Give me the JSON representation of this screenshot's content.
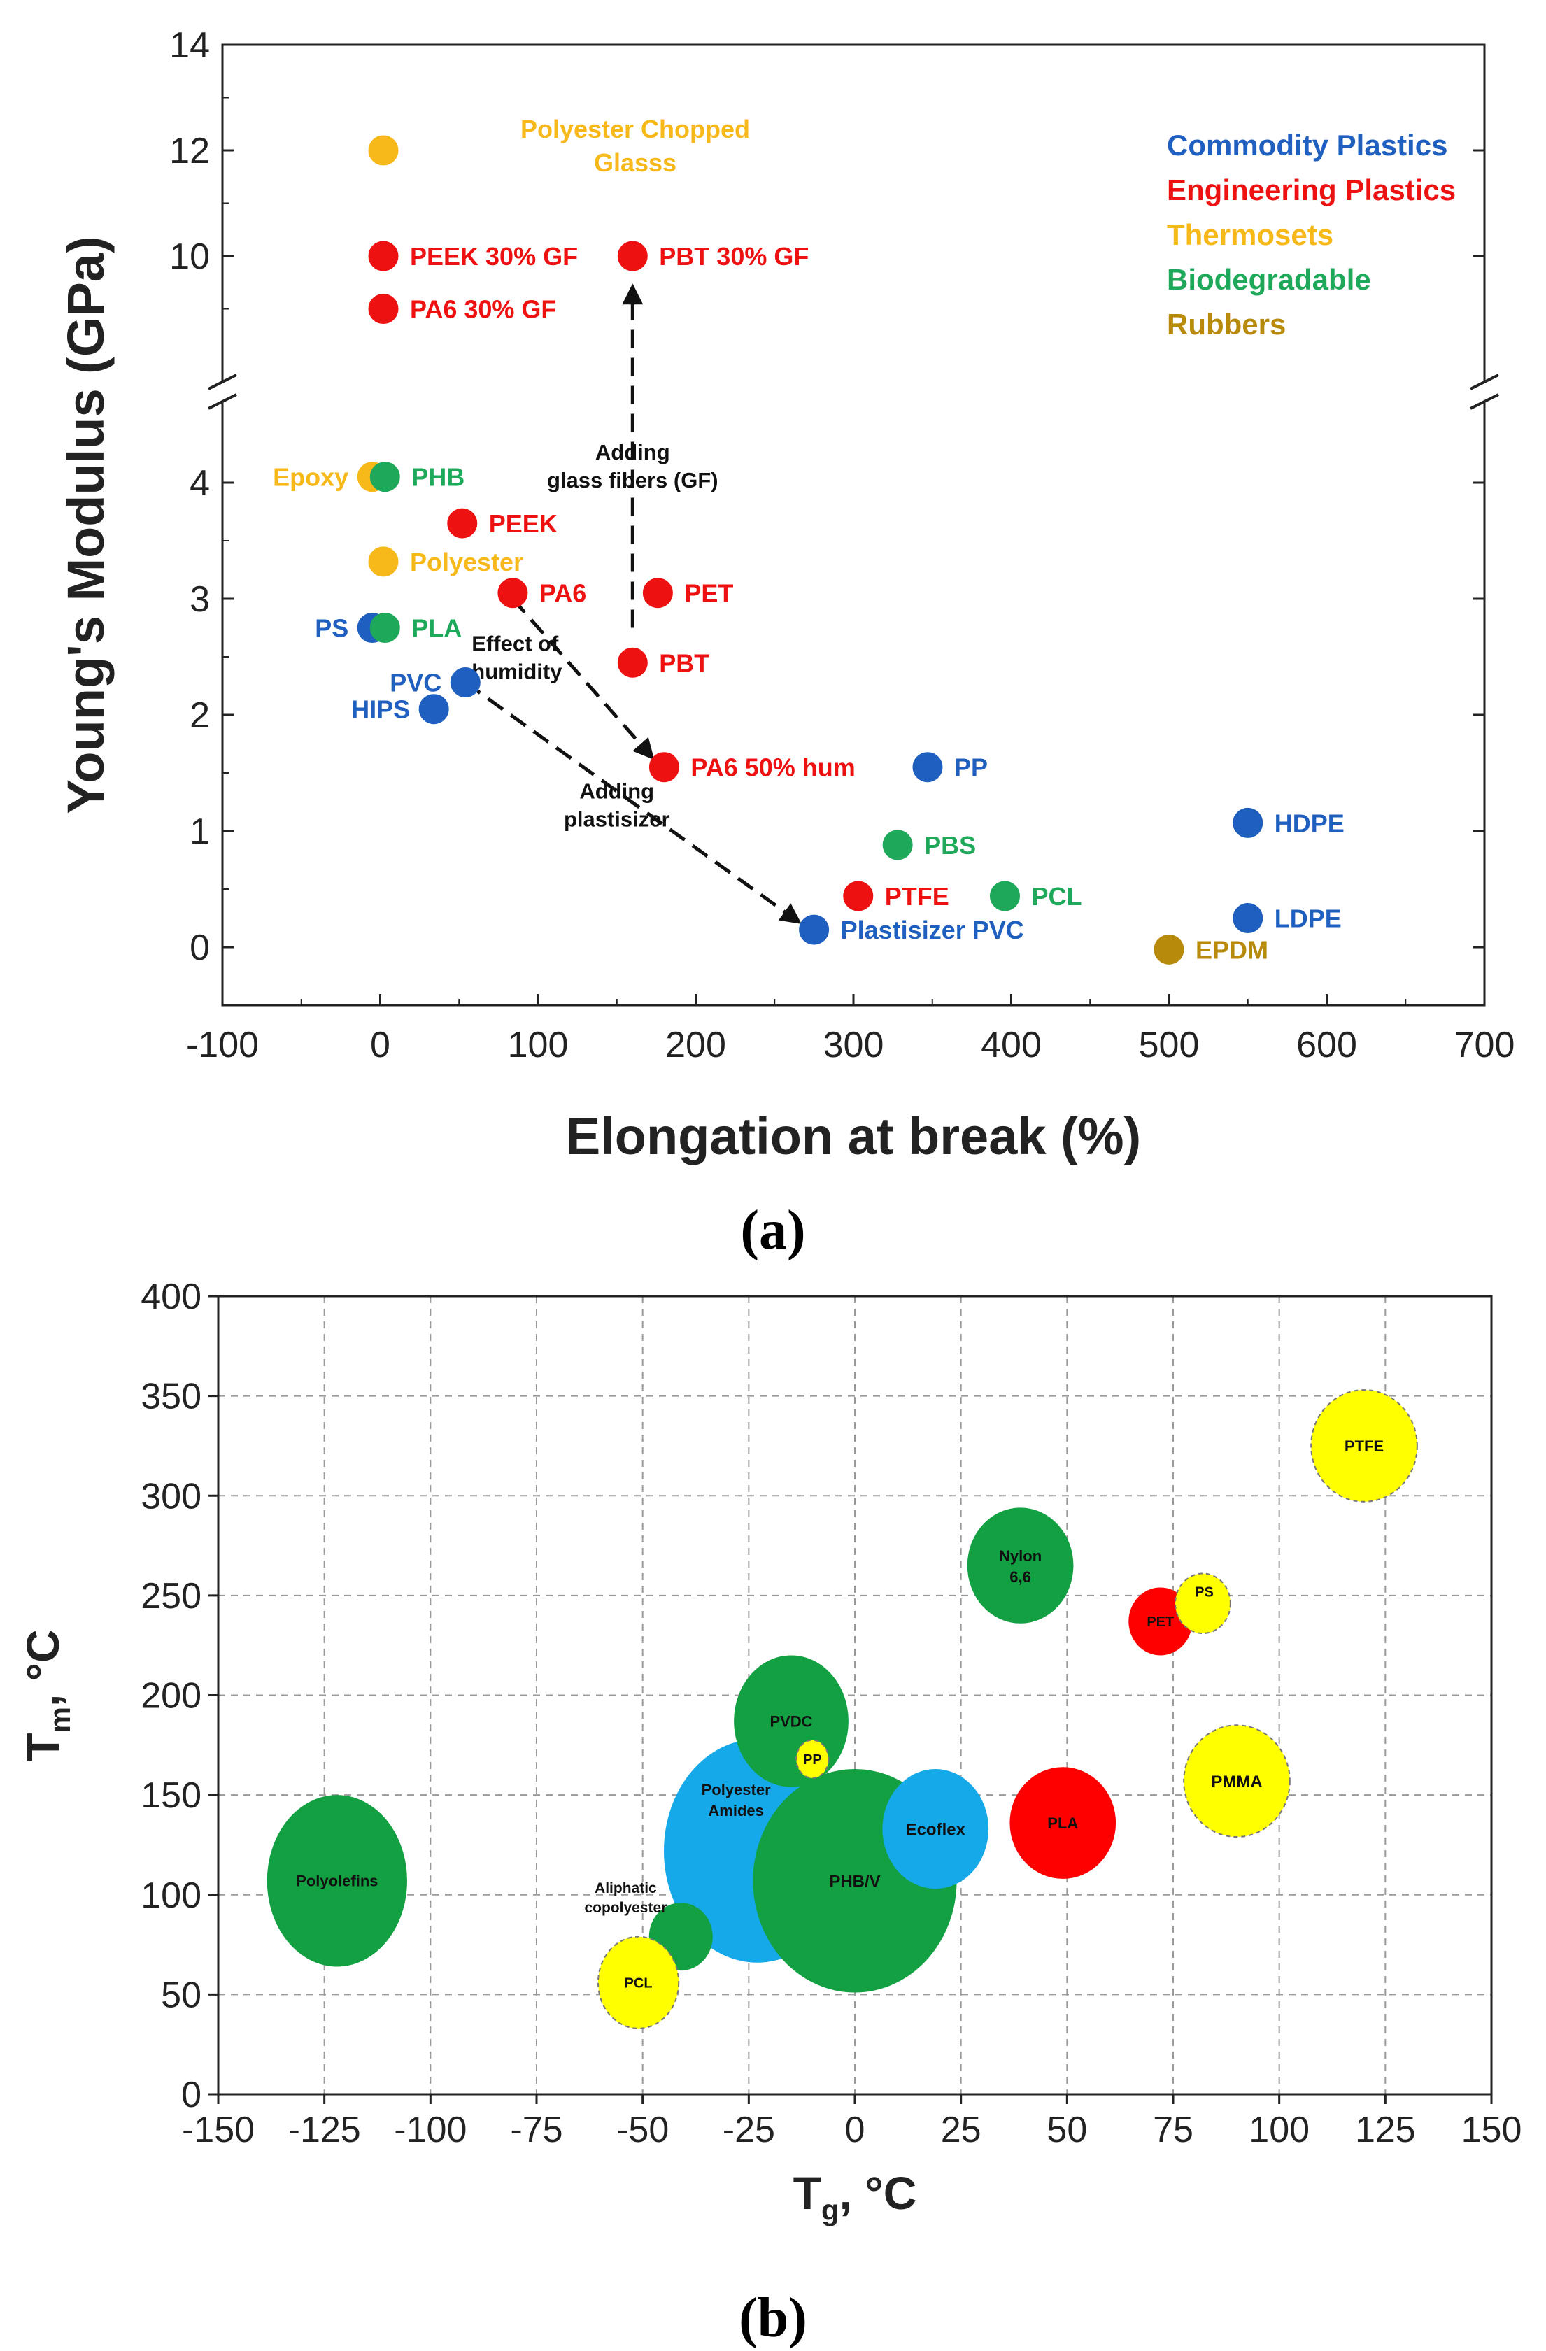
{
  "colors": {
    "commodity": "#1f5fbf",
    "engineering": "#ee1111",
    "thermoset": "#f7b919",
    "biodegradable": "#1ea85a",
    "rubber": "#b78a0c",
    "bubble_green": "#12a043",
    "bubble_blue": "#16a9e9",
    "bubble_yellow": "#ffff00",
    "bubble_red": "#ff0000"
  },
  "panel_labels": {
    "a": "(a)",
    "b": "(b)"
  },
  "chart_data": [
    {
      "id": "a",
      "type": "scatter",
      "xlabel": "Elongation at break (%)",
      "ylabel": "Young's Modulus (GPa)",
      "xlim": [
        -100,
        700
      ],
      "xticks": [
        "-100",
        "0",
        "100",
        "200",
        "300",
        "400",
        "500",
        "600",
        "700"
      ],
      "y_broken_axis": true,
      "ylim_lower": [
        -0.5,
        4.5
      ],
      "ylim_upper": [
        8,
        14
      ],
      "yticks": [
        "0",
        "1",
        "2",
        "3",
        "4",
        "10",
        "12",
        "14"
      ],
      "legend_position": "top-right",
      "legend": [
        {
          "name": "Commodity Plastics",
          "category": "commodity"
        },
        {
          "name": "Engineering Plastics",
          "category": "engineering"
        },
        {
          "name": "Thermosets",
          "category": "thermoset"
        },
        {
          "name": "Biodegradable",
          "category": "biodegradable"
        },
        {
          "name": "Rubbers",
          "category": "rubber"
        }
      ],
      "points": [
        {
          "label": "Polyester Chopped Glasss",
          "x": 2,
          "y": 12.0,
          "category": "thermoset",
          "label_side": "right"
        },
        {
          "label": "PEEK 30% GF",
          "x": 2,
          "y": 10.0,
          "category": "engineering",
          "label_side": "right"
        },
        {
          "label": "PBT 30% GF",
          "x": 160,
          "y": 10.0,
          "category": "engineering",
          "label_side": "right"
        },
        {
          "label": "PA6 30% GF",
          "x": 2,
          "y": 9.0,
          "category": "engineering",
          "label_side": "right"
        },
        {
          "label": "Epoxy",
          "x": -5,
          "y": 4.05,
          "category": "thermoset",
          "label_side": "left"
        },
        {
          "label": "PHB",
          "x": 3,
          "y": 4.05,
          "category": "biodegradable",
          "label_side": "right"
        },
        {
          "label": "PEEK",
          "x": 52,
          "y": 3.65,
          "category": "engineering",
          "label_side": "right"
        },
        {
          "label": "Polyester",
          "x": 2,
          "y": 3.32,
          "category": "thermoset",
          "label_side": "right"
        },
        {
          "label": "PA6",
          "x": 84,
          "y": 3.05,
          "category": "engineering",
          "label_side": "right"
        },
        {
          "label": "PET",
          "x": 176,
          "y": 3.05,
          "category": "engineering",
          "label_side": "right"
        },
        {
          "label": "PS",
          "x": -5,
          "y": 2.75,
          "category": "commodity",
          "label_side": "left"
        },
        {
          "label": "PLA",
          "x": 3,
          "y": 2.75,
          "category": "biodegradable",
          "label_side": "right"
        },
        {
          "label": "PBT",
          "x": 160,
          "y": 2.45,
          "category": "engineering",
          "label_side": "right"
        },
        {
          "label": "PVC",
          "x": 54,
          "y": 2.28,
          "category": "commodity",
          "label_side": "left"
        },
        {
          "label": "HIPS",
          "x": 34,
          "y": 2.05,
          "category": "commodity",
          "label_side": "left"
        },
        {
          "label": "PA6 50% hum",
          "x": 180,
          "y": 1.55,
          "category": "engineering",
          "label_side": "right"
        },
        {
          "label": "PP",
          "x": 347,
          "y": 1.55,
          "category": "commodity",
          "label_side": "right"
        },
        {
          "label": "HDPE",
          "x": 550,
          "y": 1.07,
          "category": "commodity",
          "label_side": "right"
        },
        {
          "label": "PBS",
          "x": 328,
          "y": 0.88,
          "category": "biodegradable",
          "label_side": "right"
        },
        {
          "label": "PTFE",
          "x": 303,
          "y": 0.44,
          "category": "engineering",
          "label_side": "right"
        },
        {
          "label": "PCL",
          "x": 396,
          "y": 0.44,
          "category": "biodegradable",
          "label_side": "right"
        },
        {
          "label": "LDPE",
          "x": 550,
          "y": 0.25,
          "category": "commodity",
          "label_side": "right"
        },
        {
          "label": "Plastisizer PVC",
          "x": 275,
          "y": 0.15,
          "category": "commodity",
          "label_side": "right"
        },
        {
          "label": "EPDM",
          "x": 500,
          "y": -0.02,
          "category": "rubber",
          "label_side": "right"
        }
      ],
      "annotations": [
        {
          "text": [
            "Adding",
            "glass fibers (GF)"
          ],
          "from": [
            160,
            2.75
          ],
          "to": [
            160,
            9.4
          ]
        },
        {
          "text": [
            "Effect of",
            "humidity"
          ],
          "from": [
            84,
            3.0
          ],
          "to": [
            172,
            1.64
          ]
        },
        {
          "text": [
            "Adding",
            "plastisizer"
          ],
          "from": [
            54,
            2.28
          ],
          "to": [
            265,
            0.22
          ]
        }
      ]
    },
    {
      "id": "b",
      "type": "bubble",
      "xlabel": "T",
      "xlabel_sub": "g",
      "xlabel_unit": ", °C",
      "ylabel": "T",
      "ylabel_sub": "m",
      "ylabel_unit": ", °C",
      "xlim": [
        -150,
        150
      ],
      "ylim": [
        0,
        400
      ],
      "xticks": [
        "-150",
        "-125",
        "-100",
        "-75",
        "-50",
        "-25",
        "0",
        "25",
        "50",
        "75",
        "100",
        "125",
        "150"
      ],
      "yticks": [
        "0",
        "50",
        "100",
        "150",
        "200",
        "250",
        "300",
        "350",
        "400"
      ],
      "grid": true,
      "bubbles": [
        {
          "label": "Polyolefins",
          "x": -122,
          "y": 107,
          "rx": 16.5,
          "ry": 43,
          "color": "bubble_green"
        },
        {
          "label": "Polyester Amides",
          "x": -23,
          "y": 122,
          "rx": 22,
          "ry": 56,
          "color": "bubble_blue"
        },
        {
          "label": "PVDC",
          "x": -15,
          "y": 187,
          "rx": 13.5,
          "ry": 33,
          "color": "bubble_green"
        },
        {
          "label": "PHB/V",
          "x": 0,
          "y": 107,
          "rx": 24,
          "ry": 56,
          "color": "bubble_green"
        },
        {
          "label": "PP",
          "x": -10,
          "y": 168,
          "rx": 3.8,
          "ry": 9.5,
          "color": "bubble_yellow"
        },
        {
          "label": "Ecoflex",
          "x": 19,
          "y": 133,
          "rx": 12.5,
          "ry": 30,
          "color": "bubble_blue"
        },
        {
          "label": "Aliphatic copolyester",
          "x": -41,
          "y": 79,
          "rx": 7.5,
          "ry": 17,
          "color": "bubble_green"
        },
        {
          "label": "PCL",
          "x": -51,
          "y": 56,
          "rx": 9.5,
          "ry": 23,
          "color": "bubble_yellow"
        },
        {
          "label": "Nylon 6,6",
          "x": 39,
          "y": 265,
          "rx": 12.5,
          "ry": 29,
          "color": "bubble_green"
        },
        {
          "label": "PLA",
          "x": 49,
          "y": 136,
          "rx": 12.5,
          "ry": 28,
          "color": "bubble_red"
        },
        {
          "label": "PET",
          "x": 72,
          "y": 237,
          "rx": 7.5,
          "ry": 17,
          "color": "bubble_red"
        },
        {
          "label": "PS",
          "x": 82,
          "y": 246,
          "rx": 6.5,
          "ry": 15,
          "color": "bubble_yellow"
        },
        {
          "label": "PMMA",
          "x": 90,
          "y": 157,
          "rx": 12.5,
          "ry": 28,
          "color": "bubble_yellow"
        },
        {
          "label": "PTFE",
          "x": 120,
          "y": 325,
          "rx": 12.5,
          "ry": 28,
          "color": "bubble_yellow"
        }
      ]
    }
  ]
}
